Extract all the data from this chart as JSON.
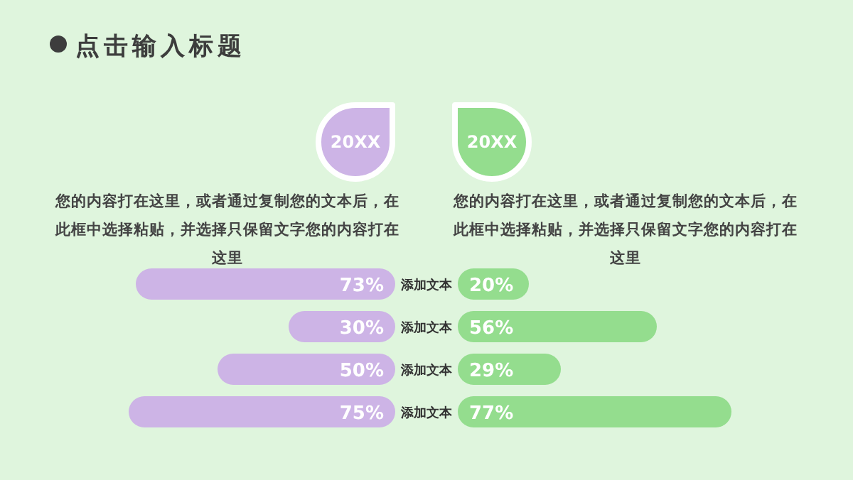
{
  "chart_data": [
    {
      "type": "bar",
      "orientation": "horizontal",
      "title": "点击输入标题",
      "categories": [
        "添加文本",
        "添加文本",
        "添加文本",
        "添加文本"
      ],
      "series": [
        {
          "name": "20XX",
          "color": "#cdb4e6",
          "values": [
            73,
            30,
            50,
            75
          ],
          "value_labels": [
            "73%",
            "30%",
            "50%",
            "75%"
          ]
        }
      ],
      "annotations": [
        "您的内容打在这里，或者通过复制您的文本后，在此框中选择粘贴，并选择只保留文字您的内容打在这里"
      ],
      "legend": "top"
    },
    {
      "type": "bar",
      "orientation": "horizontal",
      "categories": [
        null,
        null,
        null,
        null
      ],
      "series": [
        {
          "name": "20XX",
          "color": "#94dd8e",
          "values": [
            20,
            56,
            29,
            77
          ],
          "value_labels": [
            "20%",
            "56%",
            "29%",
            "77%"
          ]
        }
      ],
      "annotations": [
        "您的内容打在这里，或者通过复制您的文本后，在此框中选择粘贴，并选择只保留文字您的内容打在这里"
      ],
      "legend": "top"
    }
  ]
}
